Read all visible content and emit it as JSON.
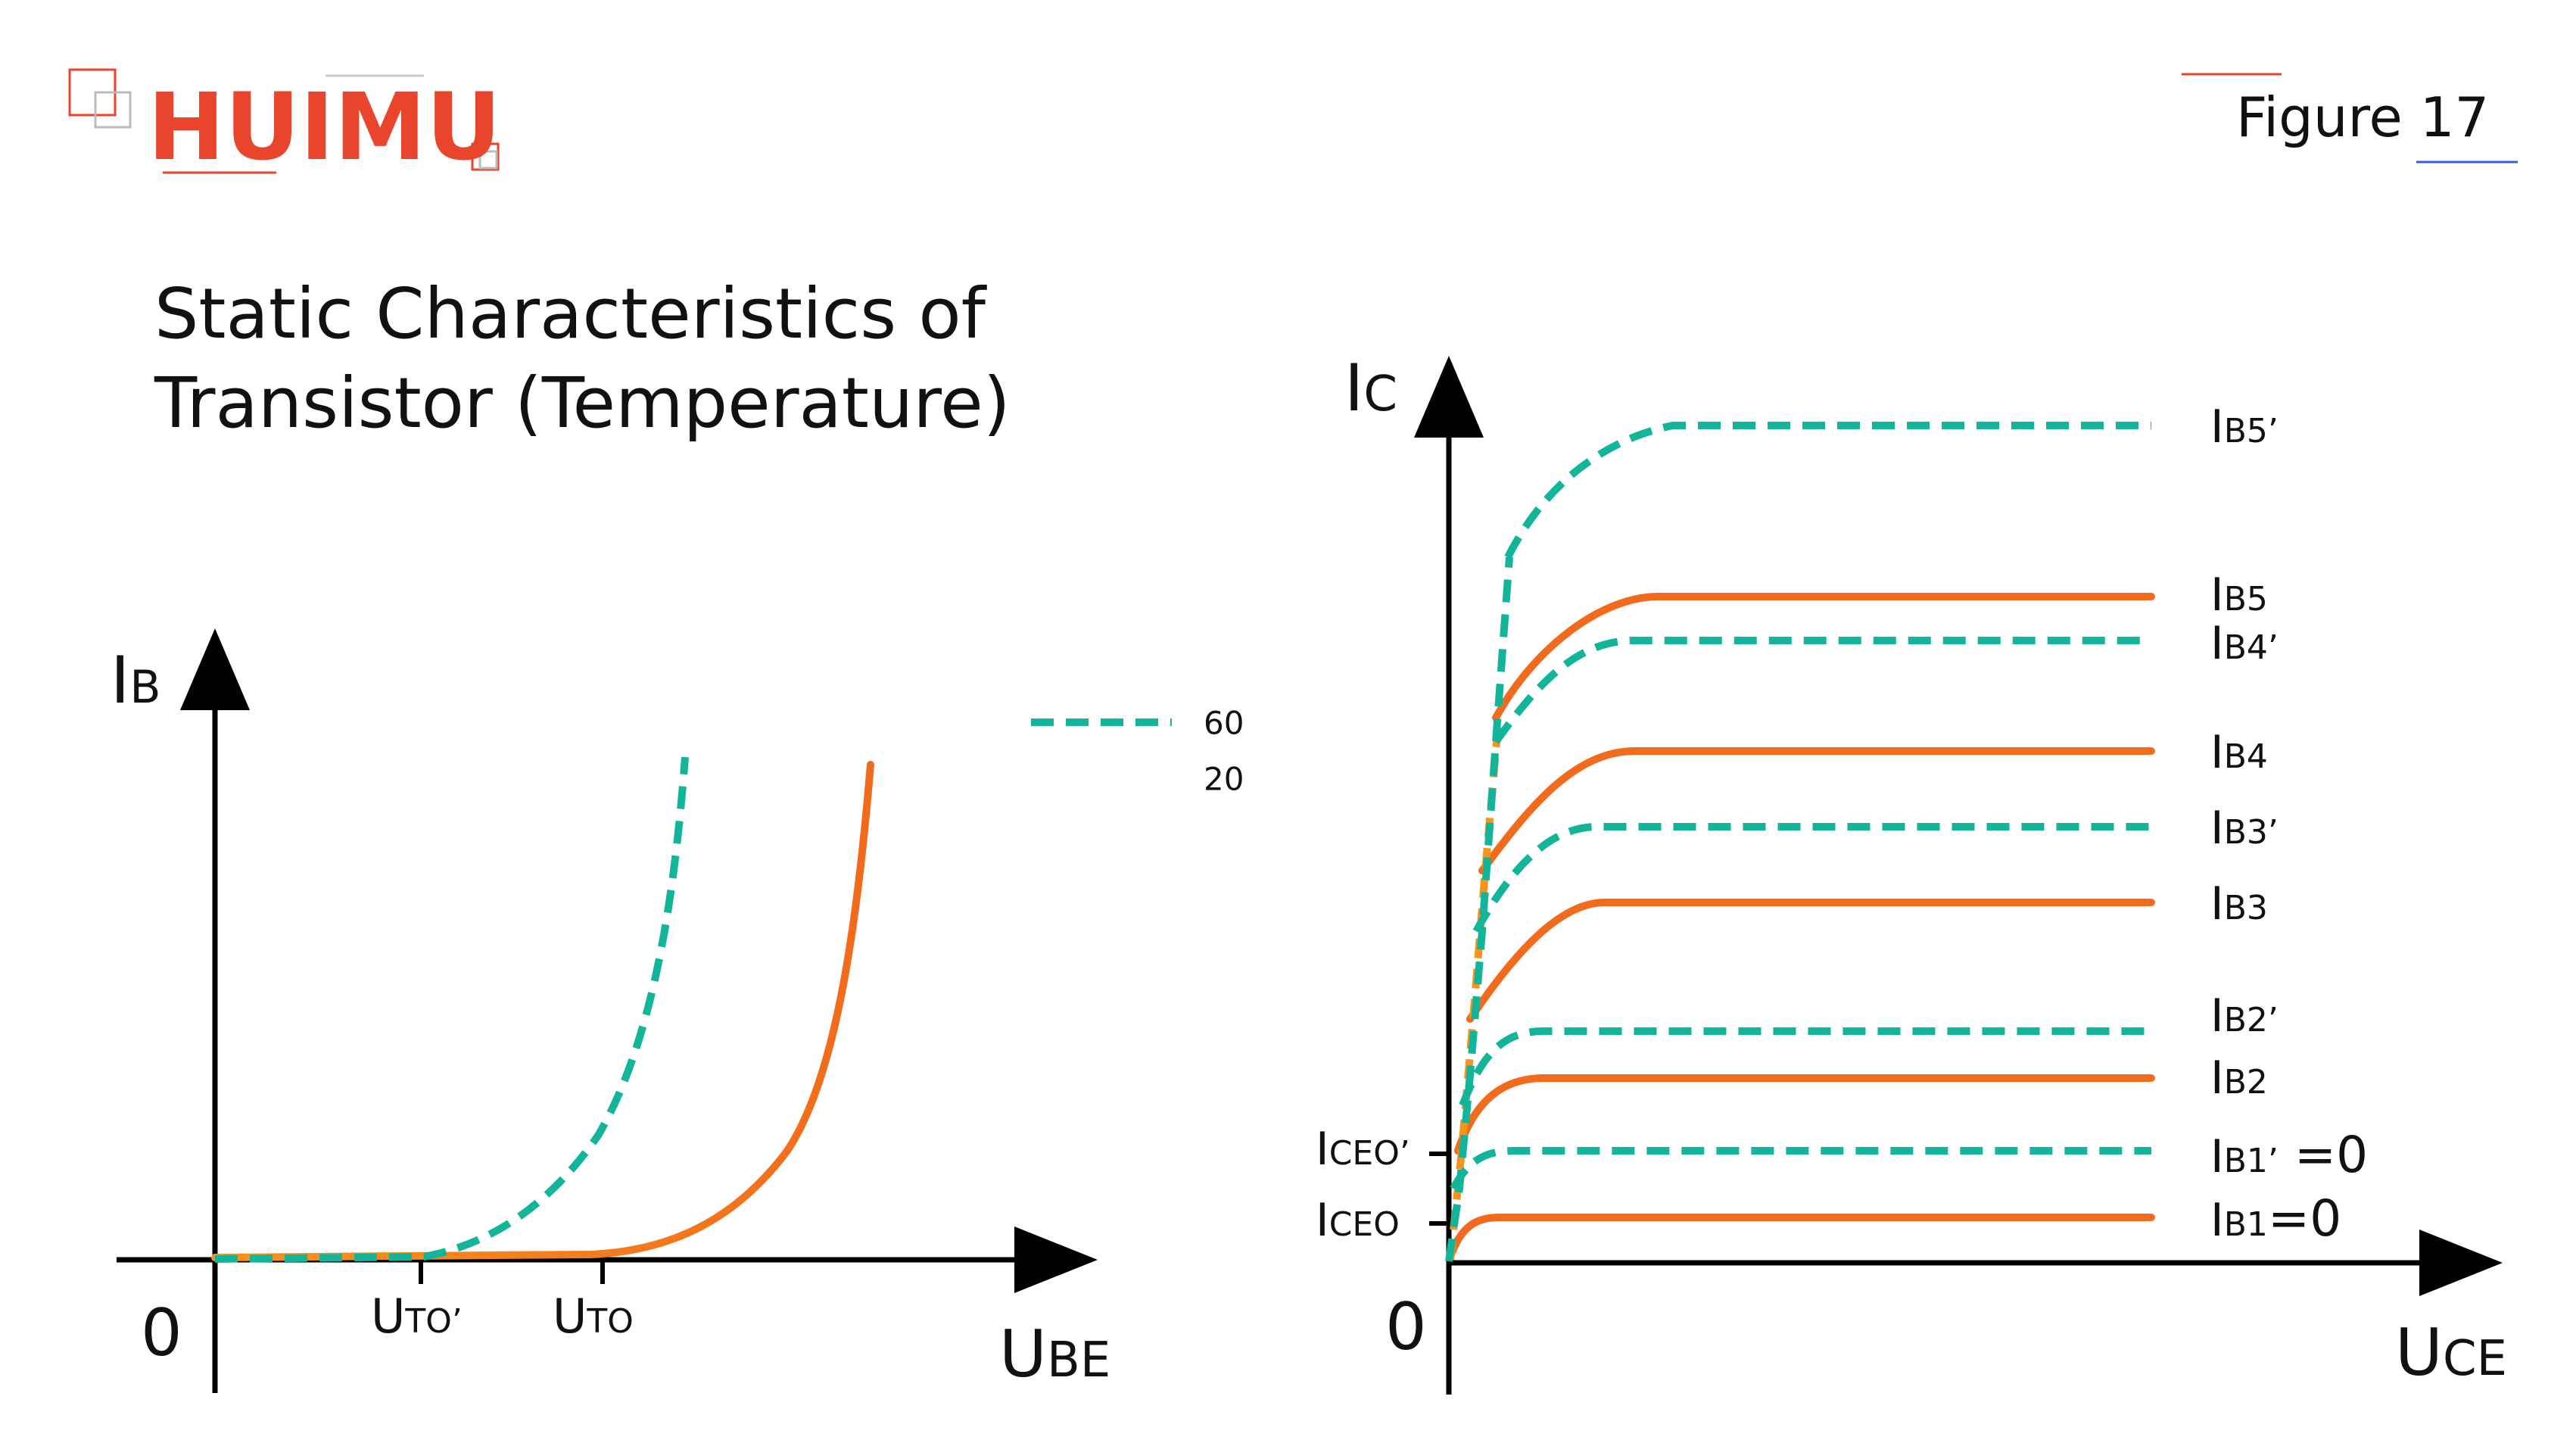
{
  "brand": {
    "logo_text": "HUIMU",
    "color": "#e8452c"
  },
  "figure_label": "Figure 17",
  "title": {
    "line1": "Static Characteristics of",
    "line2": "Transistor (Temperature)"
  },
  "colors": {
    "hot": "#13b59a",
    "cold": "#f26a1b",
    "cold_alt": "#f7941d",
    "axis": "#000000",
    "accent_line_red": "#e8452c",
    "accent_line_blue": "#3b5bd6"
  },
  "legend": [
    {
      "label": "60",
      "style": "dashed",
      "color": "#13b59a"
    },
    {
      "label": "20",
      "style": "solid",
      "color": "#f26a1b"
    }
  ],
  "input_chart": {
    "y_axis": {
      "main": "I",
      "sub": "B"
    },
    "x_axis": {
      "main": "U",
      "sub": "BE"
    },
    "origin": "0",
    "ticks": [
      {
        "main": "U",
        "sub": "TO’"
      },
      {
        "main": "U",
        "sub": "TO"
      }
    ]
  },
  "output_chart": {
    "y_axis": {
      "main": "I",
      "sub": "C"
    },
    "x_axis": {
      "main": "U",
      "sub": "CE"
    },
    "origin": "0",
    "y_ticks": [
      {
        "main": "I",
        "sub": "CEO’"
      },
      {
        "main": "I",
        "sub": "CEO"
      }
    ],
    "curves": [
      {
        "main": "I",
        "sub": "B5’",
        "suffix": ""
      },
      {
        "main": "I",
        "sub": "B5",
        "suffix": ""
      },
      {
        "main": "I",
        "sub": "B4’",
        "suffix": ""
      },
      {
        "main": "I",
        "sub": "B4",
        "suffix": ""
      },
      {
        "main": "I",
        "sub": "B3’",
        "suffix": ""
      },
      {
        "main": "I",
        "sub": "B3",
        "suffix": ""
      },
      {
        "main": "I",
        "sub": "B2’",
        "suffix": ""
      },
      {
        "main": "I",
        "sub": "B2",
        "suffix": ""
      },
      {
        "main": "I",
        "sub": "B1’",
        "suffix": " =0"
      },
      {
        "main": "I",
        "sub": "B1",
        "suffix": "=0"
      }
    ]
  }
}
